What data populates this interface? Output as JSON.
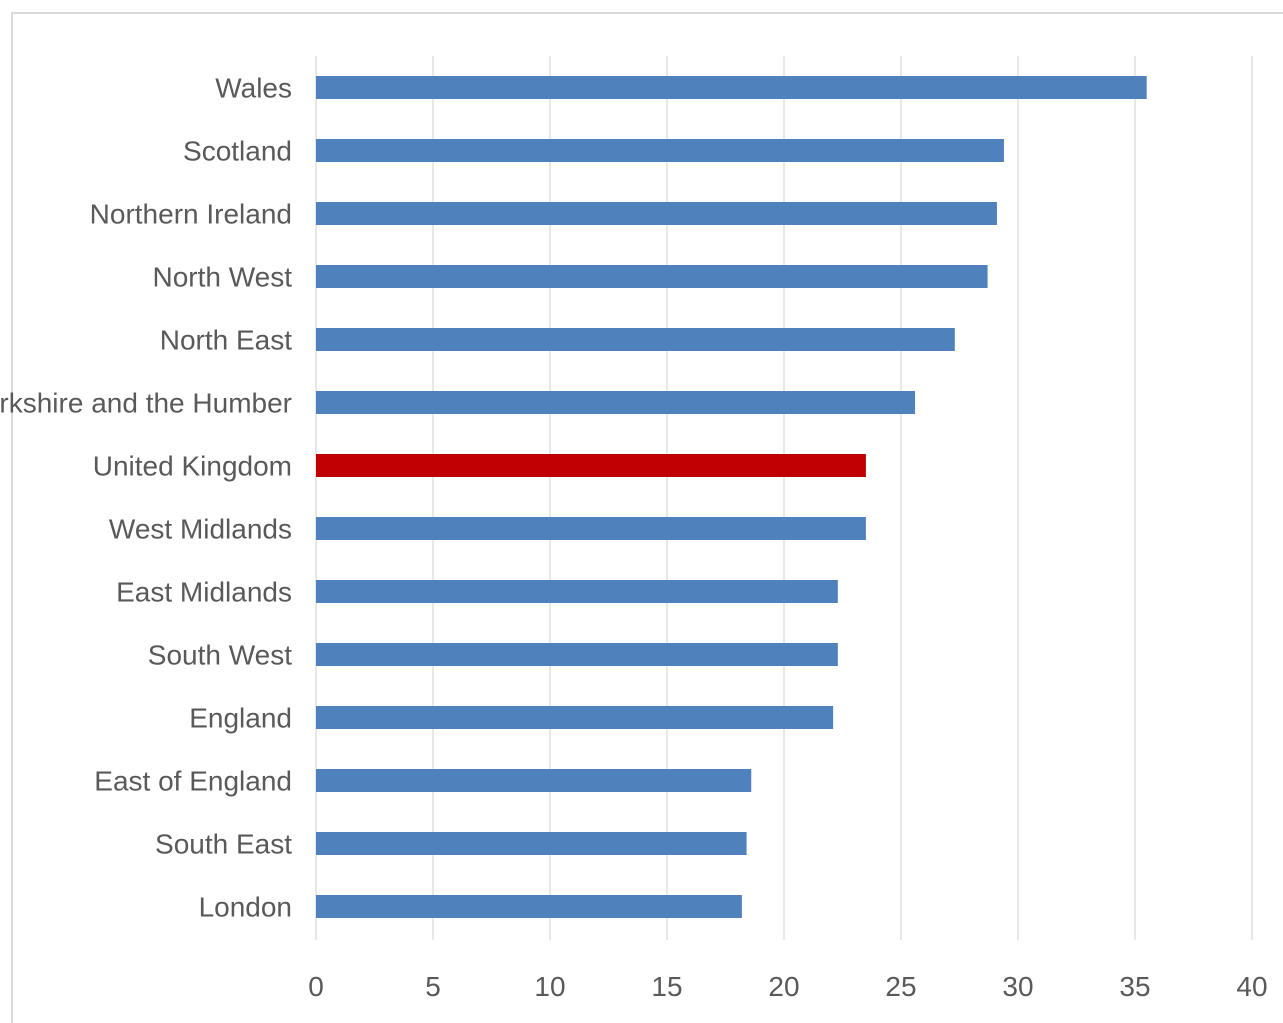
{
  "chart_data": {
    "type": "bar",
    "orientation": "horizontal",
    "title": "",
    "xlabel": "",
    "ylabel": "",
    "xlim": [
      0,
      40
    ],
    "x_ticks": [
      0,
      5,
      10,
      15,
      20,
      25,
      30,
      35,
      40
    ],
    "grid": "vertical",
    "legend": "none",
    "categories": [
      "Wales",
      "Scotland",
      "Northern Ireland",
      "North West",
      "North East",
      "Yorkshire and the Humber",
      "United Kingdom",
      "West Midlands",
      "East Midlands",
      "South West",
      "England",
      "East of England",
      "South East",
      "London"
    ],
    "values": [
      35.5,
      29.4,
      29.1,
      28.7,
      27.3,
      25.6,
      23.5,
      23.5,
      22.3,
      22.3,
      22.1,
      18.6,
      18.4,
      18.2
    ],
    "bar_colors": [
      "#4f81bd",
      "#4f81bd",
      "#4f81bd",
      "#4f81bd",
      "#4f81bd",
      "#4f81bd",
      "#c00000",
      "#4f81bd",
      "#4f81bd",
      "#4f81bd",
      "#4f81bd",
      "#4f81bd",
      "#4f81bd",
      "#4f81bd"
    ]
  }
}
